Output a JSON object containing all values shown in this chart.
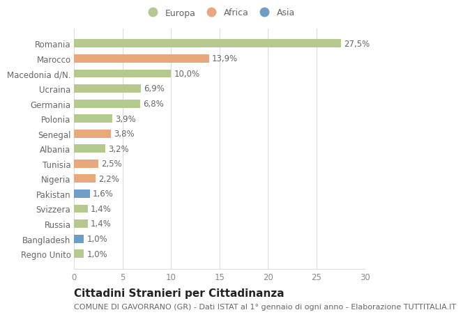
{
  "categories": [
    "Regno Unito",
    "Bangladesh",
    "Russia",
    "Svizzera",
    "Pakistan",
    "Nigeria",
    "Tunisia",
    "Albania",
    "Senegal",
    "Polonia",
    "Germania",
    "Ucraina",
    "Macedonia d/N.",
    "Marocco",
    "Romania"
  ],
  "values": [
    1.0,
    1.0,
    1.4,
    1.4,
    1.6,
    2.2,
    2.5,
    3.2,
    3.8,
    3.9,
    6.8,
    6.9,
    10.0,
    13.9,
    27.5
  ],
  "colors": [
    "#b5c98e",
    "#6e9dc8",
    "#b5c98e",
    "#b5c98e",
    "#6e9dc8",
    "#e8a87c",
    "#e8a87c",
    "#b5c98e",
    "#e8a87c",
    "#b5c98e",
    "#b5c98e",
    "#b5c98e",
    "#b5c98e",
    "#e8a87c",
    "#b5c98e"
  ],
  "labels": [
    "1,0%",
    "1,0%",
    "1,4%",
    "1,4%",
    "1,6%",
    "2,2%",
    "2,5%",
    "3,2%",
    "3,8%",
    "3,9%",
    "6,8%",
    "6,9%",
    "10,0%",
    "13,9%",
    "27,5%"
  ],
  "legend_labels": [
    "Europa",
    "Africa",
    "Asia"
  ],
  "legend_colors": [
    "#b5c98e",
    "#e8a87c",
    "#6e9dc8"
  ],
  "title": "Cittadini Stranieri per Cittadinanza",
  "subtitle": "COMUNE DI GAVORRANO (GR) - Dati ISTAT al 1° gennaio di ogni anno - Elaborazione TUTTITALIA.IT",
  "xlim": [
    0,
    30
  ],
  "xticks": [
    0,
    5,
    10,
    15,
    20,
    25,
    30
  ],
  "background_color": "#ffffff",
  "grid_color": "#dddddd",
  "bar_height": 0.55,
  "title_fontsize": 11,
  "subtitle_fontsize": 8,
  "tick_fontsize": 8.5,
  "label_fontsize": 8.5
}
